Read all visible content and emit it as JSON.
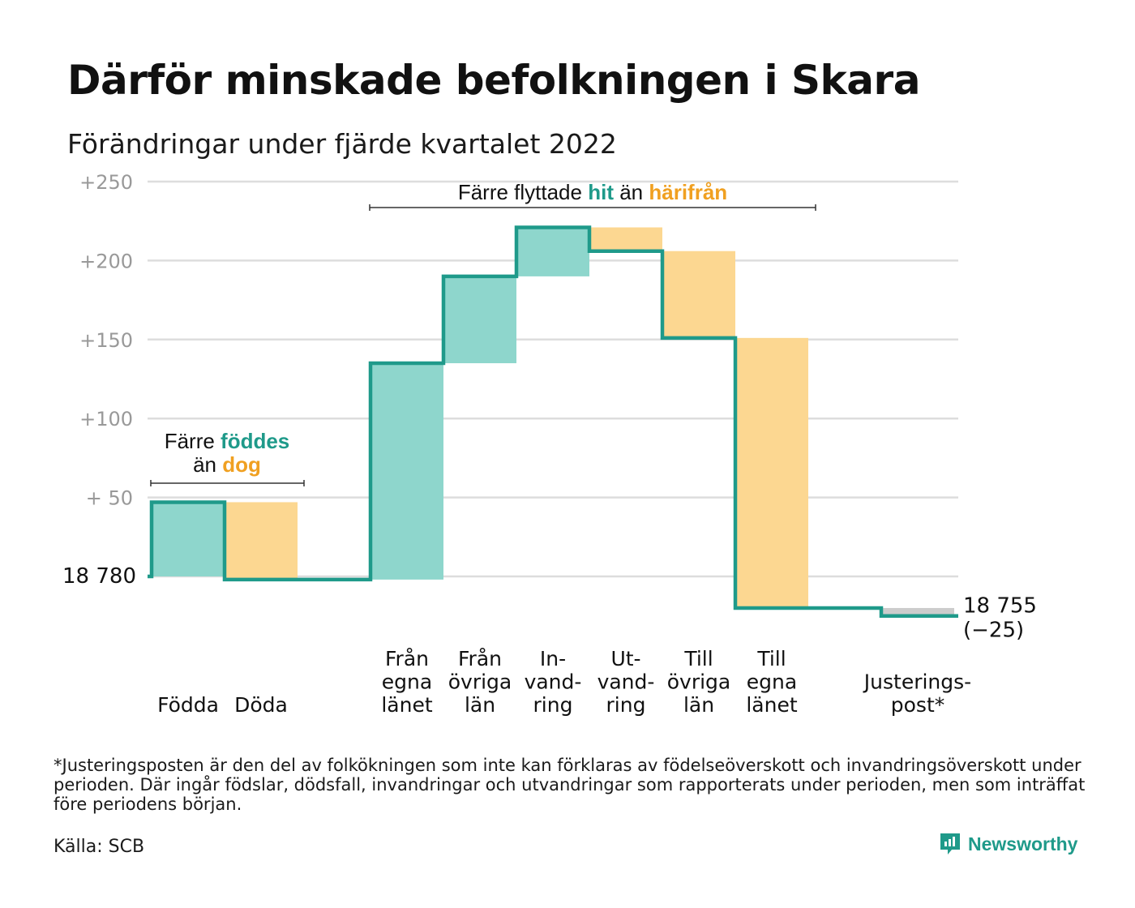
{
  "title": "Därför minskade befolkningen i Skara",
  "subtitle": "Förändringar under fjärde kvartalet 2022",
  "footnote": "*Justeringsposten är den del av folkökningen som inte kan förklaras av födelseöverskott och invandringsöverskott under perioden. Där ingår födslar, dödsfall, invandringar och utvandringar som rapporterats under perioden, men som inträffat före periodens början.",
  "source": "Källa: SCB",
  "brand": {
    "name": "Newsworthy",
    "icon": "newsworthy-logo-icon"
  },
  "colors": {
    "increase": "#8ed6cc",
    "decrease": "#fcd791",
    "adjustment": "#cccccc",
    "line": "#1f9a8a",
    "accent_orange": "#f0a021",
    "grid": "#dddddd",
    "tick": "#999999"
  },
  "chart_data": {
    "type": "waterfall",
    "baseline_label": "18 780",
    "end_label": "18 755",
    "end_change_label": "(−25)",
    "ylim": [
      -25,
      250
    ],
    "yticks": [
      {
        "value": 50,
        "label": "+ 50"
      },
      {
        "value": 100,
        "label": "+100"
      },
      {
        "value": 150,
        "label": "+150"
      },
      {
        "value": 200,
        "label": "+200"
      },
      {
        "value": 250,
        "label": "+250"
      }
    ],
    "steps": [
      {
        "label": [
          "Födda"
        ],
        "change": 47,
        "kind": "increase"
      },
      {
        "label": [
          "Döda"
        ],
        "change": -49,
        "kind": "decrease"
      },
      {
        "label": [],
        "change": 0,
        "kind": "none"
      },
      {
        "label": [
          "Från",
          "egna",
          "länet"
        ],
        "change": 137,
        "kind": "increase"
      },
      {
        "label": [
          "Från",
          "övriga",
          "län"
        ],
        "change": 55,
        "kind": "increase"
      },
      {
        "label": [
          "In-",
          "vand-",
          "ring"
        ],
        "change": 31,
        "kind": "increase"
      },
      {
        "label": [
          "Ut-",
          "vand-",
          "ring"
        ],
        "change": -15,
        "kind": "decrease"
      },
      {
        "label": [
          "Till",
          "övriga",
          "län"
        ],
        "change": -55,
        "kind": "decrease"
      },
      {
        "label": [
          "Till",
          "egna",
          "länet"
        ],
        "change": -171,
        "kind": "decrease"
      },
      {
        "label": [],
        "change": 0,
        "kind": "none"
      },
      {
        "label": [
          "Justerings-",
          "post*"
        ],
        "change": -5,
        "kind": "adjustment"
      }
    ],
    "annotations": [
      {
        "parts": [
          [
            "Färre ",
            "plain"
          ],
          [
            "föddes",
            "increase"
          ]
        ],
        "parts2": [
          [
            "än ",
            "plain"
          ],
          [
            "dog",
            "decrease"
          ]
        ]
      },
      {
        "parts": [
          [
            "Färre flyttade ",
            "plain"
          ],
          [
            "hit",
            "increase"
          ],
          [
            " än ",
            "plain"
          ],
          [
            "härifrån",
            "decrease"
          ]
        ]
      }
    ]
  }
}
